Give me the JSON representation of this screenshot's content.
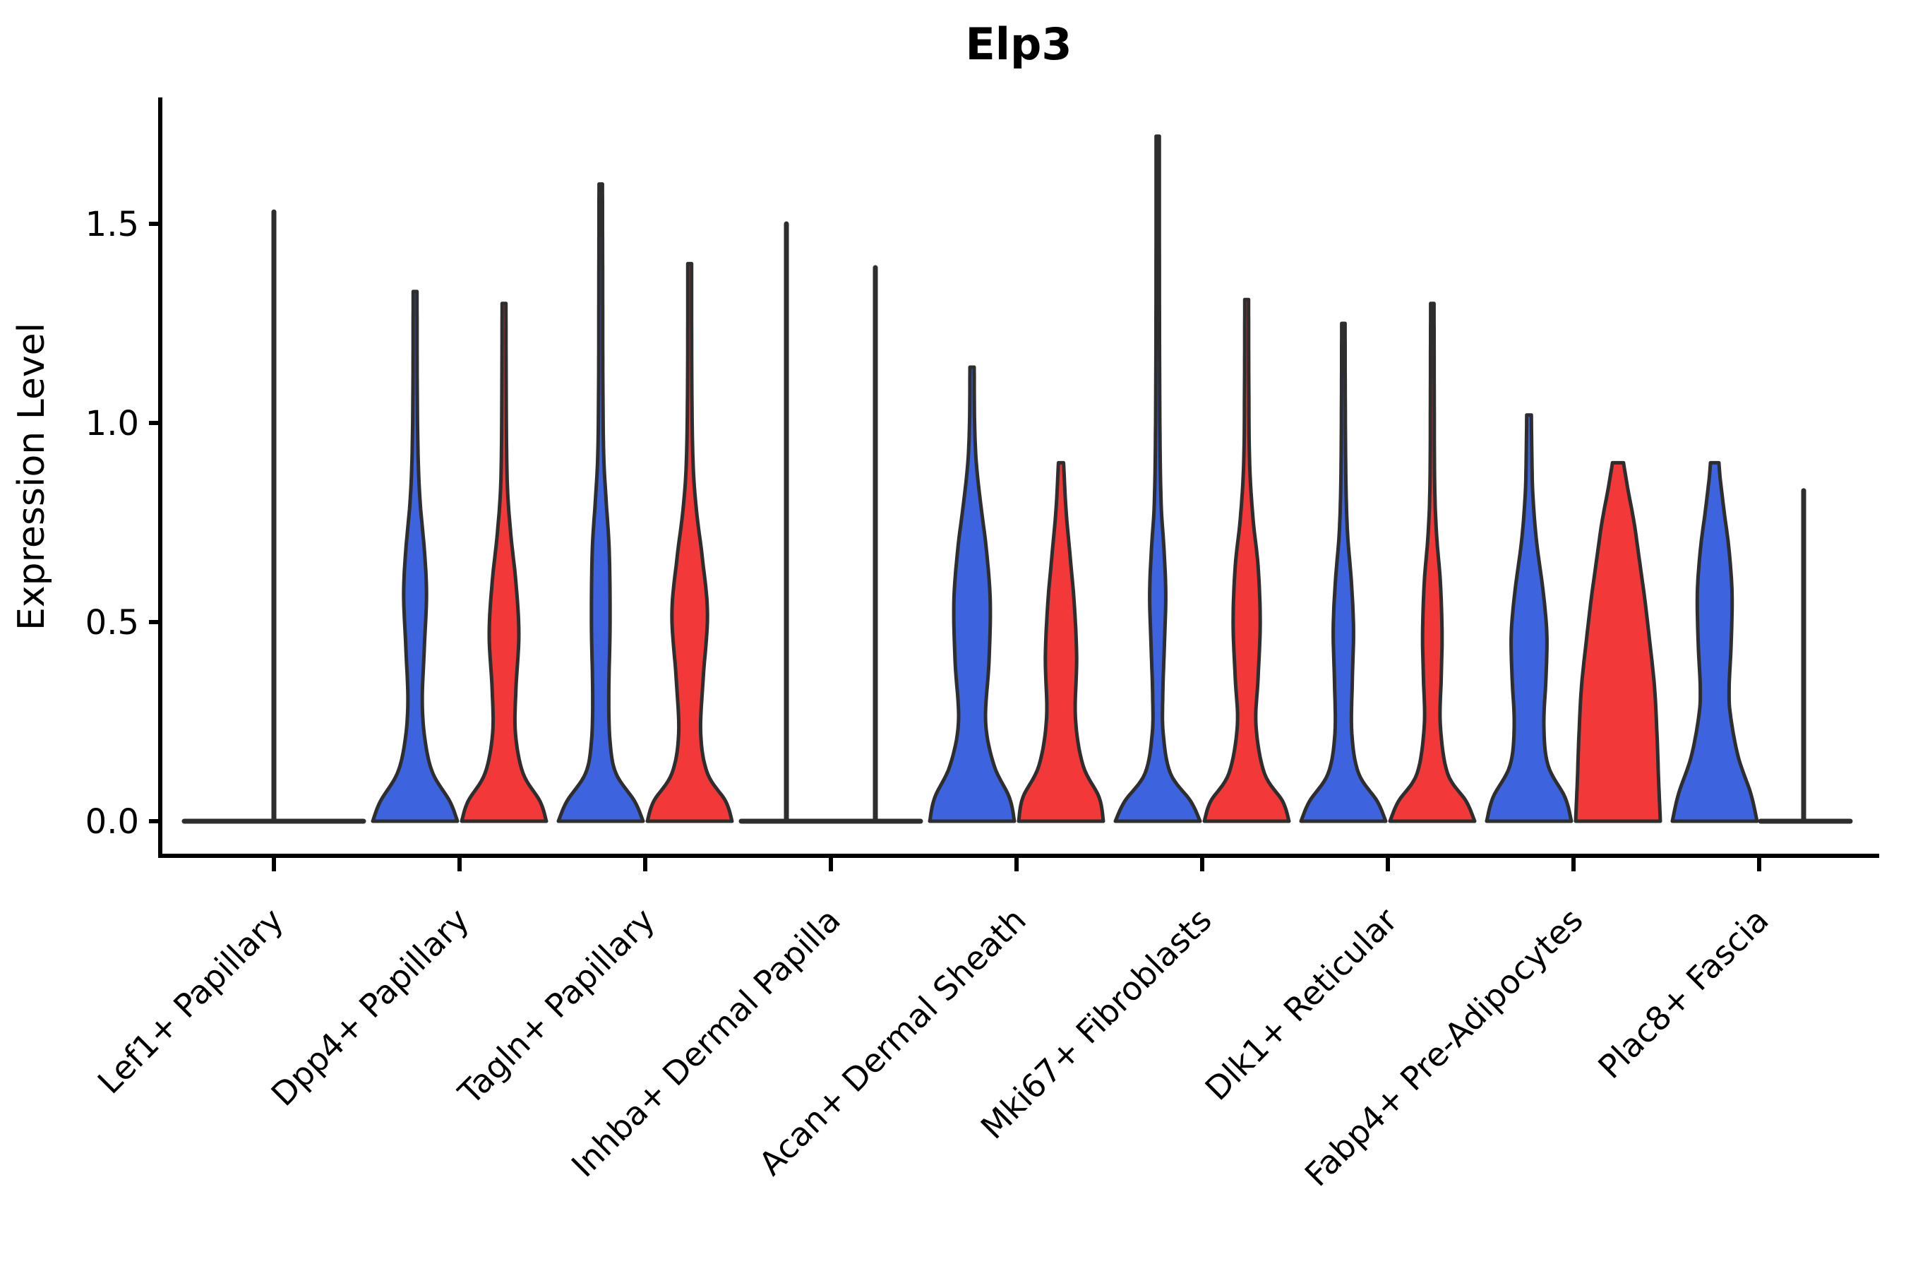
{
  "chart_data": {
    "type": "violin",
    "title": "Elp3",
    "ylabel": "Expression Level",
    "xlabel": "",
    "ylim": [
      0,
      1.82
    ],
    "grid": false,
    "legend": "none",
    "y_axis": {
      "ticks": [
        {
          "label": "0.0",
          "value": 0.0
        },
        {
          "label": "0.5",
          "value": 0.5
        },
        {
          "label": "1.0",
          "value": 1.0
        },
        {
          "label": "1.5",
          "value": 1.5
        }
      ]
    },
    "categories": [
      {
        "label": "Lef1+ Papillary",
        "slug": "lef1-papillary"
      },
      {
        "label": "Dpp4+ Papillary",
        "slug": "dpp4-papillary"
      },
      {
        "label": "Tagln+ Papillary",
        "slug": "tagln-papillary"
      },
      {
        "label": "Inhba+ Dermal Papilla",
        "slug": "inhba-dermal-papilla"
      },
      {
        "label": "Acan+ Dermal Sheath",
        "slug": "acan-dermal-sheath"
      },
      {
        "label": "Mki67+ Fibroblasts",
        "slug": "mki67-fibroblasts"
      },
      {
        "label": "Dlk1+ Reticular",
        "slug": "dlk1-reticular"
      },
      {
        "label": "Fabp4+ Pre-Adipocytes",
        "slug": "fabp4-pre-adipocytes"
      },
      {
        "label": "Plac8+ Fascia",
        "slug": "plac8-fascia"
      }
    ],
    "colors": {
      "blue": "#3D63DE",
      "red": "#F23838",
      "outline": "#2E2E2E",
      "axis": "#000000"
    },
    "violins": [
      {
        "cat": 0,
        "side": "center",
        "color": "none",
        "kind": "spike",
        "max": 1.53,
        "baseline_span": [
          -127,
          127
        ]
      },
      {
        "cat": 1,
        "side": "left",
        "color": "blue",
        "kind": "violin",
        "max": 1.33,
        "profile": [
          [
            0,
            1.0
          ],
          [
            0.05,
            0.82
          ],
          [
            0.12,
            0.42
          ],
          [
            0.2,
            0.24
          ],
          [
            0.3,
            0.17
          ],
          [
            0.44,
            0.22
          ],
          [
            0.57,
            0.27
          ],
          [
            0.68,
            0.22
          ],
          [
            0.8,
            0.12
          ],
          [
            0.92,
            0.07
          ],
          [
            1.1,
            0.05
          ],
          [
            1.33,
            0.045
          ]
        ]
      },
      {
        "cat": 1,
        "side": "right",
        "color": "red",
        "kind": "violin",
        "max": 1.3,
        "profile": [
          [
            0,
            1.0
          ],
          [
            0.05,
            0.85
          ],
          [
            0.12,
            0.45
          ],
          [
            0.22,
            0.27
          ],
          [
            0.33,
            0.28
          ],
          [
            0.47,
            0.35
          ],
          [
            0.6,
            0.28
          ],
          [
            0.72,
            0.16
          ],
          [
            0.84,
            0.08
          ],
          [
            1.0,
            0.055
          ],
          [
            1.3,
            0.045
          ]
        ]
      },
      {
        "cat": 2,
        "side": "left",
        "color": "blue",
        "kind": "violin",
        "max": 1.6,
        "profile": [
          [
            0,
            1.0
          ],
          [
            0.05,
            0.8
          ],
          [
            0.12,
            0.36
          ],
          [
            0.2,
            0.22
          ],
          [
            0.32,
            0.19
          ],
          [
            0.5,
            0.22
          ],
          [
            0.68,
            0.2
          ],
          [
            0.8,
            0.13
          ],
          [
            0.92,
            0.07
          ],
          [
            1.1,
            0.05
          ],
          [
            1.35,
            0.045
          ],
          [
            1.6,
            0.04
          ]
        ]
      },
      {
        "cat": 2,
        "side": "right",
        "color": "red",
        "kind": "violin",
        "max": 1.4,
        "profile": [
          [
            0,
            1.0
          ],
          [
            0.05,
            0.85
          ],
          [
            0.12,
            0.42
          ],
          [
            0.22,
            0.26
          ],
          [
            0.36,
            0.32
          ],
          [
            0.52,
            0.42
          ],
          [
            0.66,
            0.3
          ],
          [
            0.78,
            0.16
          ],
          [
            0.9,
            0.08
          ],
          [
            1.1,
            0.05
          ],
          [
            1.4,
            0.045
          ]
        ]
      },
      {
        "cat": 3,
        "side": "left",
        "color": "blue",
        "kind": "spike",
        "max": 1.5,
        "baseline_span": [
          -127,
          0
        ]
      },
      {
        "cat": 3,
        "side": "right",
        "color": "red",
        "kind": "spike",
        "max": 1.39,
        "baseline_span": [
          0,
          127
        ]
      },
      {
        "cat": 4,
        "side": "left",
        "color": "blue",
        "kind": "violin",
        "max": 1.14,
        "profile": [
          [
            0,
            1.0
          ],
          [
            0.06,
            0.88
          ],
          [
            0.14,
            0.52
          ],
          [
            0.25,
            0.32
          ],
          [
            0.4,
            0.4
          ],
          [
            0.55,
            0.43
          ],
          [
            0.68,
            0.34
          ],
          [
            0.8,
            0.2
          ],
          [
            0.9,
            0.1
          ],
          [
            1.0,
            0.06
          ],
          [
            1.14,
            0.05
          ]
        ]
      },
      {
        "cat": 4,
        "side": "right",
        "color": "red",
        "kind": "violin",
        "max": 0.9,
        "profile": [
          [
            0,
            1.0
          ],
          [
            0.06,
            0.9
          ],
          [
            0.14,
            0.52
          ],
          [
            0.26,
            0.34
          ],
          [
            0.41,
            0.37
          ],
          [
            0.55,
            0.31
          ],
          [
            0.66,
            0.22
          ],
          [
            0.78,
            0.12
          ],
          [
            0.9,
            0.06
          ]
        ]
      },
      {
        "cat": 5,
        "side": "left",
        "color": "blue",
        "kind": "violin",
        "max": 1.72,
        "profile": [
          [
            0,
            1.0
          ],
          [
            0.05,
            0.78
          ],
          [
            0.12,
            0.3
          ],
          [
            0.22,
            0.13
          ],
          [
            0.32,
            0.12
          ],
          [
            0.45,
            0.16
          ],
          [
            0.57,
            0.19
          ],
          [
            0.68,
            0.15
          ],
          [
            0.8,
            0.08
          ],
          [
            1.0,
            0.05
          ],
          [
            1.35,
            0.04
          ],
          [
            1.72,
            0.038
          ]
        ]
      },
      {
        "cat": 5,
        "side": "right",
        "color": "red",
        "kind": "violin",
        "max": 1.31,
        "profile": [
          [
            0,
            1.0
          ],
          [
            0.05,
            0.85
          ],
          [
            0.12,
            0.42
          ],
          [
            0.24,
            0.22
          ],
          [
            0.36,
            0.27
          ],
          [
            0.5,
            0.32
          ],
          [
            0.64,
            0.27
          ],
          [
            0.76,
            0.15
          ],
          [
            0.9,
            0.07
          ],
          [
            1.1,
            0.05
          ],
          [
            1.31,
            0.045
          ]
        ]
      },
      {
        "cat": 6,
        "side": "left",
        "color": "blue",
        "kind": "violin",
        "max": 1.25,
        "profile": [
          [
            0,
            1.0
          ],
          [
            0.05,
            0.8
          ],
          [
            0.12,
            0.36
          ],
          [
            0.22,
            0.2
          ],
          [
            0.35,
            0.21
          ],
          [
            0.48,
            0.24
          ],
          [
            0.6,
            0.19
          ],
          [
            0.72,
            0.1
          ],
          [
            0.85,
            0.06
          ],
          [
            1.05,
            0.045
          ],
          [
            1.25,
            0.04
          ]
        ]
      },
      {
        "cat": 6,
        "side": "right",
        "color": "red",
        "kind": "violin",
        "max": 1.3,
        "profile": [
          [
            0,
            1.0
          ],
          [
            0.05,
            0.8
          ],
          [
            0.12,
            0.36
          ],
          [
            0.24,
            0.19
          ],
          [
            0.36,
            0.21
          ],
          [
            0.47,
            0.23
          ],
          [
            0.6,
            0.19
          ],
          [
            0.72,
            0.1
          ],
          [
            0.85,
            0.055
          ],
          [
            1.08,
            0.045
          ],
          [
            1.3,
            0.04
          ]
        ]
      },
      {
        "cat": 7,
        "side": "left",
        "color": "blue",
        "kind": "violin",
        "max": 1.02,
        "profile": [
          [
            0,
            1.0
          ],
          [
            0.06,
            0.85
          ],
          [
            0.14,
            0.45
          ],
          [
            0.24,
            0.35
          ],
          [
            0.36,
            0.4
          ],
          [
            0.47,
            0.42
          ],
          [
            0.58,
            0.33
          ],
          [
            0.7,
            0.18
          ],
          [
            0.82,
            0.09
          ],
          [
            0.93,
            0.065
          ],
          [
            1.02,
            0.055
          ]
        ]
      },
      {
        "cat": 7,
        "side": "right",
        "color": "red",
        "kind": "violin",
        "max": 0.9,
        "profile": [
          [
            0,
            1.0
          ],
          [
            0.1,
            0.96
          ],
          [
            0.22,
            0.92
          ],
          [
            0.34,
            0.86
          ],
          [
            0.46,
            0.74
          ],
          [
            0.56,
            0.63
          ],
          [
            0.66,
            0.5
          ],
          [
            0.75,
            0.38
          ],
          [
            0.83,
            0.24
          ],
          [
            0.9,
            0.13
          ]
        ]
      },
      {
        "cat": 8,
        "side": "left",
        "color": "blue",
        "kind": "violin",
        "max": 0.9,
        "profile": [
          [
            0,
            1.0
          ],
          [
            0.07,
            0.85
          ],
          [
            0.16,
            0.56
          ],
          [
            0.26,
            0.38
          ],
          [
            0.33,
            0.34
          ],
          [
            0.45,
            0.39
          ],
          [
            0.57,
            0.41
          ],
          [
            0.68,
            0.34
          ],
          [
            0.78,
            0.22
          ],
          [
            0.86,
            0.13
          ],
          [
            0.9,
            0.1
          ]
        ]
      },
      {
        "cat": 8,
        "side": "right",
        "color": "red",
        "kind": "spike",
        "max": 0.83,
        "baseline_span": [
          2,
          129
        ]
      }
    ]
  }
}
